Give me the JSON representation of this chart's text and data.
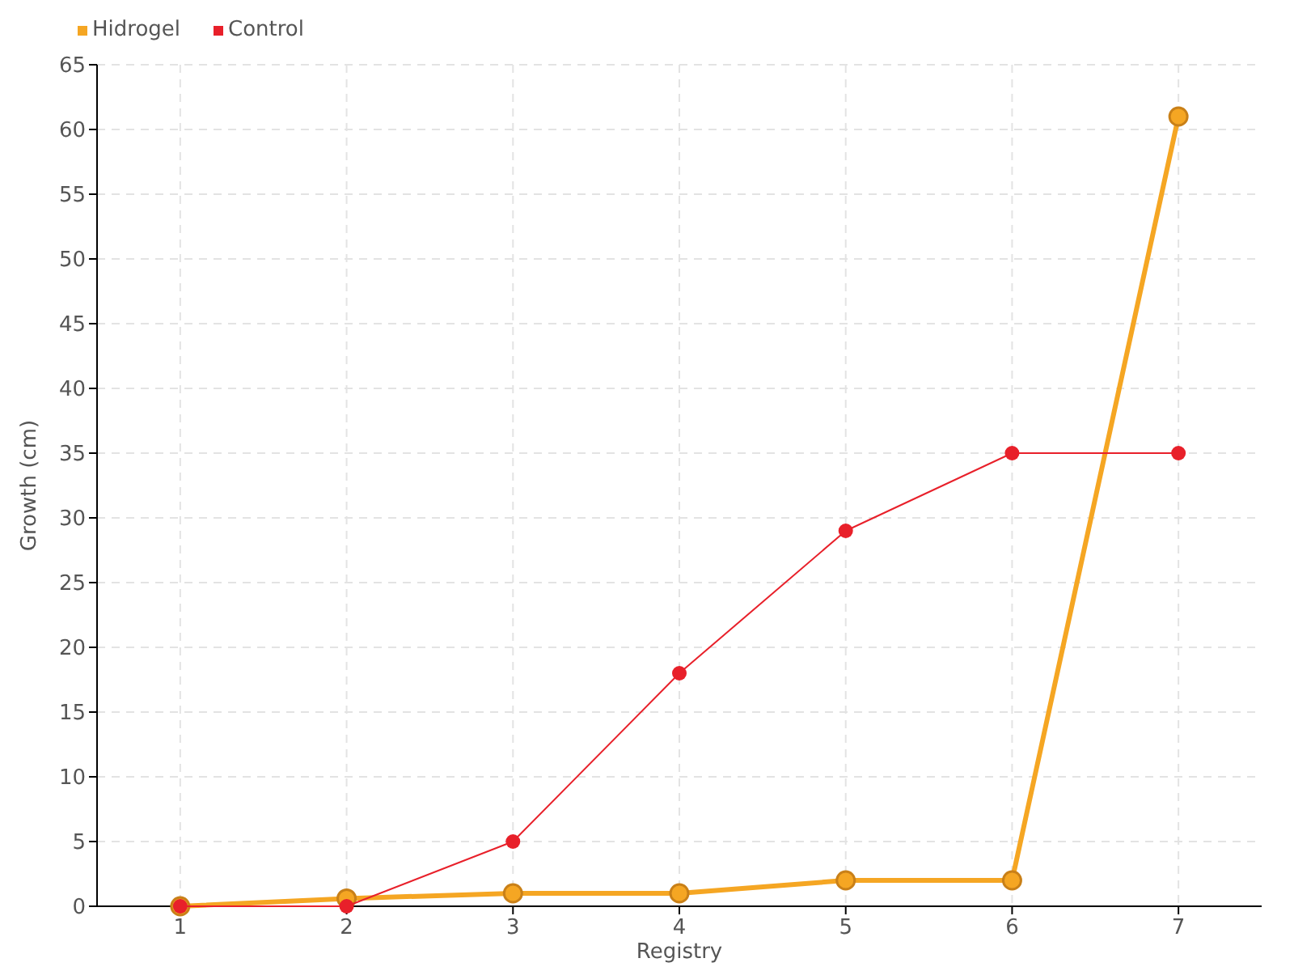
{
  "chart_data": {
    "type": "line",
    "xlabel": "Registry",
    "ylabel": "Growth (cm)",
    "categories": [
      "1",
      "2",
      "3",
      "4",
      "5",
      "6",
      "7"
    ],
    "series": [
      {
        "name": "Hidrogel",
        "color": "#f5a623",
        "values": [
          0,
          0.6,
          1,
          1,
          2,
          2,
          61
        ]
      },
      {
        "name": "Control",
        "color": "#e8202a",
        "values": [
          0,
          0,
          5,
          18,
          29,
          35,
          35
        ]
      }
    ],
    "ylim": [
      0,
      65
    ],
    "yticks": [
      0,
      5,
      10,
      15,
      20,
      25,
      30,
      35,
      40,
      45,
      50,
      55,
      60,
      65
    ],
    "grid": true,
    "legend": "top left",
    "marker": "circle"
  }
}
